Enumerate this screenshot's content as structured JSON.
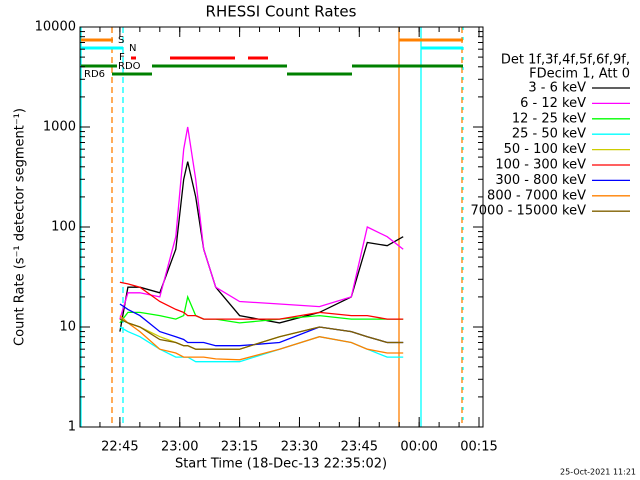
{
  "chart_data": {
    "type": "line",
    "title": "RHESSI Count Rates",
    "y_label": "Count Rate (s⁻¹ detector segment⁻¹)",
    "x_label": "Start Time (18-Dec-13 22:35:02)",
    "footer": "25-Oct-2021 11:21",
    "legend_header": [
      "Det 1f,3f,4f,5f,6f,9f,",
      "FDecim 1, Att 0"
    ],
    "legend": "right",
    "log_y": true,
    "flags": [
      {
        "name": "S",
        "color": "#ff8000"
      },
      {
        "name": "N",
        "color": "#00ffff"
      },
      {
        "name": "F",
        "color": "#ff0000"
      },
      {
        "name": "RDO",
        "color": "#008000"
      },
      {
        "name": "RD6",
        "color": "#008000"
      }
    ],
    "xlim": [
      "22:35",
      "00:16"
    ],
    "xticks": [
      "22:45",
      "23:00",
      "23:15",
      "23:30",
      "23:45",
      "00:00",
      "00:15"
    ],
    "ylim": [
      1,
      10000
    ],
    "yticks": [
      1,
      10,
      100,
      1000,
      10000
    ],
    "x": [
      "22:45",
      "22:47",
      "22:50",
      "22:55",
      "22:59",
      "23:01",
      "23:02",
      "23:04",
      "23:06",
      "23:09",
      "23:15",
      "23:25",
      "23:35",
      "23:43",
      "23:47",
      "23:52",
      "23:56"
    ],
    "series": [
      {
        "name": "3 - 6 keV",
        "color": "#000000",
        "values": [
          9,
          25,
          25,
          22,
          60,
          300,
          450,
          200,
          60,
          25,
          13,
          11,
          14,
          20,
          70,
          65,
          80
        ]
      },
      {
        "name": "6 - 12 keV",
        "color": "#ff00ff",
        "values": [
          12,
          22,
          22,
          20,
          80,
          600,
          1000,
          300,
          60,
          25,
          18,
          17,
          16,
          20,
          100,
          80,
          60
        ]
      },
      {
        "name": "12 - 25 keV",
        "color": "#00ff00",
        "values": [
          11,
          14,
          14,
          13,
          12,
          13,
          20,
          13,
          12,
          12,
          11,
          12,
          13,
          12,
          12,
          12,
          12
        ]
      },
      {
        "name": "25 - 50 keV",
        "color": "#00ffff",
        "values": [
          10,
          9,
          8,
          6,
          5,
          5,
          5,
          4.5,
          4.5,
          4.5,
          4.5,
          6,
          8,
          7,
          6,
          5,
          5
        ]
      },
      {
        "name": "50 - 100 keV",
        "color": "#cccc00",
        "values": [
          12,
          11,
          10,
          8,
          7,
          6.5,
          6.5,
          6,
          6,
          6,
          6,
          8,
          10,
          9,
          8,
          7,
          7
        ]
      },
      {
        "name": "100 - 300 keV",
        "color": "#ff0000",
        "values": [
          28,
          27,
          25,
          18,
          15,
          14,
          13,
          13,
          12,
          12,
          12,
          12,
          14,
          13,
          13,
          12,
          12
        ]
      },
      {
        "name": "300 - 800 keV",
        "color": "#0000ff",
        "values": [
          17,
          15,
          13,
          9,
          8,
          7.5,
          7,
          7,
          7,
          6.5,
          6.5,
          7,
          10,
          9,
          8,
          7,
          7
        ]
      },
      {
        "name": "800 - 7000 keV",
        "color": "#ff8000",
        "values": [
          13,
          11,
          9,
          6,
          5.5,
          5,
          5,
          5,
          5,
          4.8,
          4.7,
          6,
          8,
          7,
          6,
          5.5,
          5.5
        ]
      },
      {
        "name": "7000 - 15000 keV",
        "color": "#806000",
        "values": [
          12,
          11,
          10,
          7.5,
          7,
          6.5,
          6.5,
          6,
          6,
          6,
          6,
          8,
          10,
          9,
          8,
          7,
          7
        ]
      }
    ]
  }
}
